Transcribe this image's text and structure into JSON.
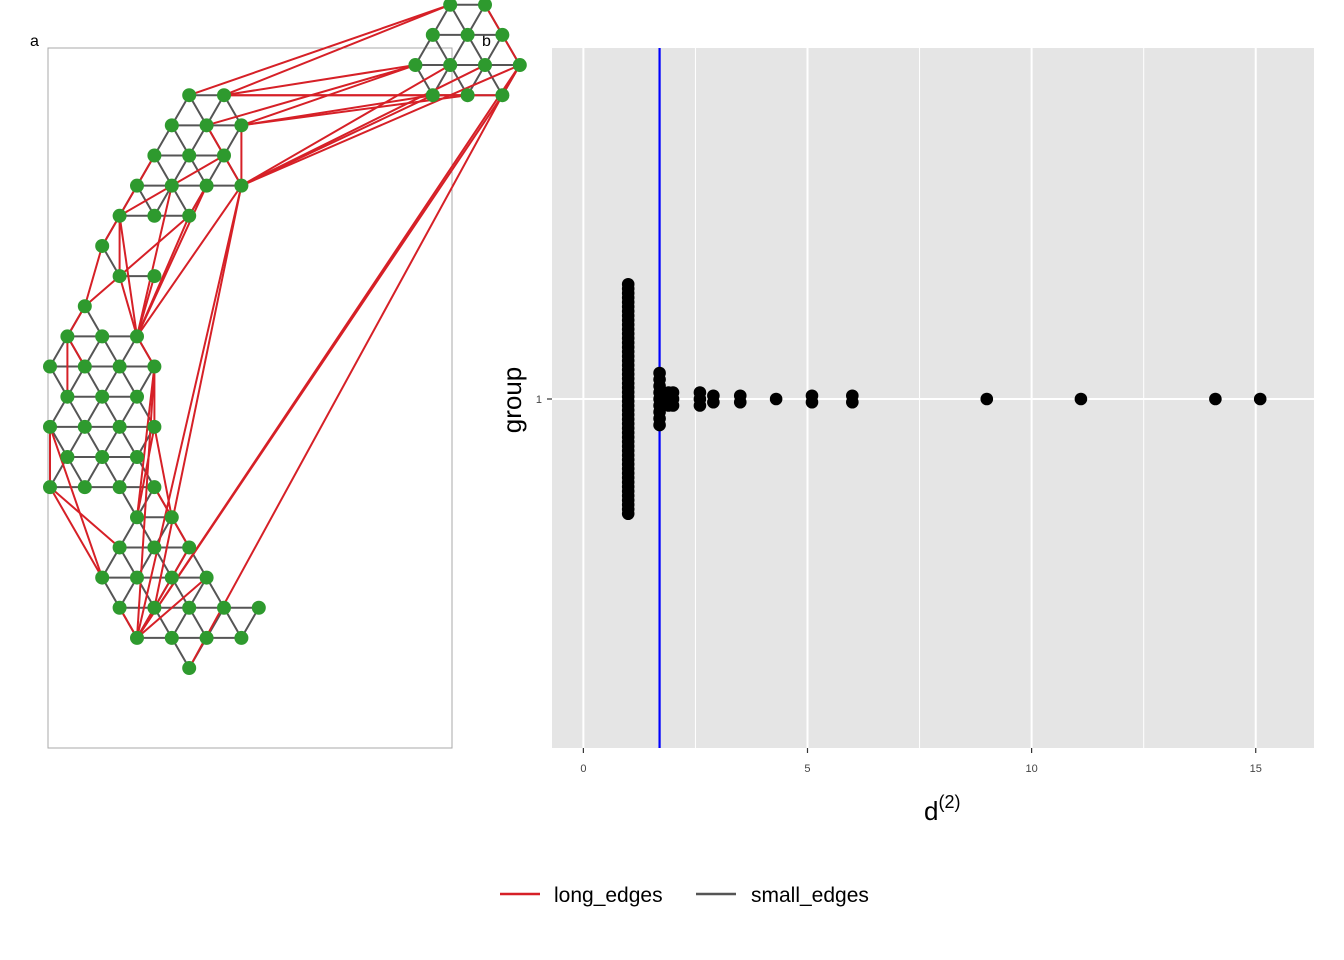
{
  "panel_labels": {
    "a": "a",
    "b": "b"
  },
  "colors": {
    "long_edge": "#d62027",
    "small_edge": "#555555",
    "node": "#2e9a2e",
    "panel_bg": "#e5e5e5",
    "grid": "#ffffff",
    "threshold_line": "#0000ff",
    "dot": "#000000",
    "frame": "#aaaaaa"
  },
  "legend": {
    "entries": [
      {
        "label": "long_edges",
        "color": "#d62027"
      },
      {
        "label": "small_edges",
        "color": "#555555"
      }
    ]
  },
  "chart_data": [
    {
      "type": "scatter",
      "panel": "a",
      "description_note": "",
      "xlabel": "",
      "ylabel": "",
      "axes_visible": false,
      "nodes": [
        {
          "x": 9.0,
          "y": 19.5
        },
        {
          "x": 10.0,
          "y": 19.5
        },
        {
          "x": 8.5,
          "y": 18.6
        },
        {
          "x": 9.5,
          "y": 18.6
        },
        {
          "x": 10.5,
          "y": 18.6
        },
        {
          "x": 8.0,
          "y": 17.7
        },
        {
          "x": 9.0,
          "y": 17.7
        },
        {
          "x": 10.0,
          "y": 17.7
        },
        {
          "x": 11.0,
          "y": 17.7
        },
        {
          "x": 8.5,
          "y": 16.8
        },
        {
          "x": 9.5,
          "y": 16.8
        },
        {
          "x": 10.5,
          "y": 16.8
        },
        {
          "x": 1.5,
          "y": 16.8
        },
        {
          "x": 2.5,
          "y": 16.8
        },
        {
          "x": 1.0,
          "y": 15.9
        },
        {
          "x": 2.0,
          "y": 15.9
        },
        {
          "x": 3.0,
          "y": 15.9
        },
        {
          "x": 0.5,
          "y": 15.0
        },
        {
          "x": 1.5,
          "y": 15.0
        },
        {
          "x": 2.5,
          "y": 15.0
        },
        {
          "x": 0.0,
          "y": 14.1
        },
        {
          "x": 1.0,
          "y": 14.1
        },
        {
          "x": 2.0,
          "y": 14.1
        },
        {
          "x": 3.0,
          "y": 14.1
        },
        {
          "x": -0.5,
          "y": 13.2
        },
        {
          "x": 0.5,
          "y": 13.2
        },
        {
          "x": 1.5,
          "y": 13.2
        },
        {
          "x": -1.0,
          "y": 12.3
        },
        {
          "x": -0.5,
          "y": 11.4
        },
        {
          "x": 0.5,
          "y": 11.4
        },
        {
          "x": -1.5,
          "y": 10.5
        },
        {
          "x": -2.0,
          "y": 9.6
        },
        {
          "x": -1.0,
          "y": 9.6
        },
        {
          "x": 0.0,
          "y": 9.6
        },
        {
          "x": -2.5,
          "y": 8.7
        },
        {
          "x": -1.5,
          "y": 8.7
        },
        {
          "x": -0.5,
          "y": 8.7
        },
        {
          "x": 0.5,
          "y": 8.7
        },
        {
          "x": -2.0,
          "y": 7.8
        },
        {
          "x": -1.0,
          "y": 7.8
        },
        {
          "x": 0.0,
          "y": 7.8
        },
        {
          "x": -2.5,
          "y": 6.9
        },
        {
          "x": -1.5,
          "y": 6.9
        },
        {
          "x": -0.5,
          "y": 6.9
        },
        {
          "x": 0.5,
          "y": 6.9
        },
        {
          "x": -2.0,
          "y": 6.0
        },
        {
          "x": -1.0,
          "y": 6.0
        },
        {
          "x": 0.0,
          "y": 6.0
        },
        {
          "x": -2.5,
          "y": 5.1
        },
        {
          "x": -1.5,
          "y": 5.1
        },
        {
          "x": -0.5,
          "y": 5.1
        },
        {
          "x": 0.5,
          "y": 5.1
        },
        {
          "x": 0.0,
          "y": 4.2
        },
        {
          "x": 1.0,
          "y": 4.2
        },
        {
          "x": -0.5,
          "y": 3.3
        },
        {
          "x": 0.5,
          "y": 3.3
        },
        {
          "x": 1.5,
          "y": 3.3
        },
        {
          "x": -1.0,
          "y": 2.4
        },
        {
          "x": 0.0,
          "y": 2.4
        },
        {
          "x": 1.0,
          "y": 2.4
        },
        {
          "x": 2.0,
          "y": 2.4
        },
        {
          "x": -0.5,
          "y": 1.5
        },
        {
          "x": 0.5,
          "y": 1.5
        },
        {
          "x": 1.5,
          "y": 1.5
        },
        {
          "x": 2.5,
          "y": 1.5
        },
        {
          "x": 3.5,
          "y": 1.5
        },
        {
          "x": 0.0,
          "y": 0.6
        },
        {
          "x": 1.0,
          "y": 0.6
        },
        {
          "x": 2.0,
          "y": 0.6
        },
        {
          "x": 3.0,
          "y": 0.6
        },
        {
          "x": 1.5,
          "y": -0.3
        }
      ],
      "long_edges": [
        [
          0,
          12
        ],
        [
          0,
          13
        ],
        [
          1,
          8
        ],
        [
          5,
          13
        ],
        [
          5,
          15
        ],
        [
          5,
          16
        ],
        [
          8,
          11
        ],
        [
          8,
          66
        ],
        [
          11,
          66
        ],
        [
          11,
          70
        ],
        [
          11,
          13
        ],
        [
          10,
          13
        ],
        [
          10,
          16
        ],
        [
          9,
          16
        ],
        [
          9,
          23
        ],
        [
          8,
          23
        ],
        [
          7,
          23
        ],
        [
          6,
          23
        ],
        [
          16,
          23
        ],
        [
          15,
          23
        ],
        [
          23,
          33
        ],
        [
          23,
          66
        ],
        [
          23,
          62
        ],
        [
          22,
          33
        ],
        [
          22,
          26
        ],
        [
          19,
          24
        ],
        [
          17,
          24
        ],
        [
          24,
          28
        ],
        [
          24,
          33
        ],
        [
          21,
          33
        ],
        [
          26,
          33
        ],
        [
          28,
          33
        ],
        [
          29,
          33
        ],
        [
          27,
          30
        ],
        [
          28,
          30
        ],
        [
          30,
          31
        ],
        [
          31,
          35
        ],
        [
          31,
          38
        ],
        [
          33,
          37
        ],
        [
          37,
          44
        ],
        [
          37,
          52
        ],
        [
          37,
          66
        ],
        [
          44,
          52
        ],
        [
          44,
          53
        ],
        [
          41,
          57
        ],
        [
          41,
          48
        ],
        [
          48,
          54
        ],
        [
          48,
          57
        ],
        [
          53,
          56
        ],
        [
          56,
          66
        ],
        [
          60,
          66
        ],
        [
          61,
          66
        ],
        [
          51,
          53
        ],
        [
          26,
          28
        ],
        [
          27,
          24
        ]
      ],
      "small_edges": "triangular-lattice neighbours (distance 1)"
    },
    {
      "type": "dotplot",
      "panel": "b",
      "xlabel": "d",
      "xlabel_superscript": "(2)",
      "ylabel": "group",
      "xlim": [
        -0.7,
        16.3
      ],
      "x_ticks": [
        0,
        5,
        10,
        15
      ],
      "x_tick_labels": [
        "0",
        "5",
        "10",
        "15"
      ],
      "y_categories": [
        "1"
      ],
      "grid": true,
      "threshold": 1.7,
      "stacks": [
        {
          "x": 1.0,
          "count": 52
        },
        {
          "x": 1.7,
          "count": 9
        },
        {
          "x": 1.9,
          "count": 3
        },
        {
          "x": 2.0,
          "count": 3
        },
        {
          "x": 2.6,
          "count": 3
        },
        {
          "x": 2.9,
          "count": 2
        },
        {
          "x": 3.5,
          "count": 2
        },
        {
          "x": 4.3,
          "count": 1
        },
        {
          "x": 5.1,
          "count": 2
        },
        {
          "x": 6.0,
          "count": 2
        },
        {
          "x": 9.0,
          "count": 1
        },
        {
          "x": 11.1,
          "count": 1
        },
        {
          "x": 14.1,
          "count": 1
        },
        {
          "x": 15.1,
          "count": 1
        }
      ]
    }
  ]
}
